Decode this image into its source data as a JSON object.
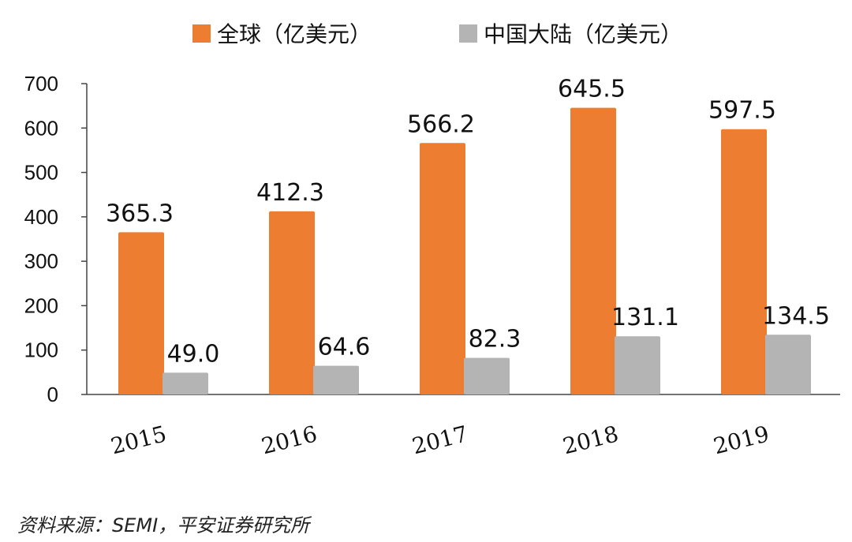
{
  "chart_data": {
    "type": "bar",
    "categories": [
      "2015",
      "2016",
      "2017",
      "2018",
      "2019"
    ],
    "series": [
      {
        "name": "全球（亿美元）",
        "color": "#ED7D31",
        "values": [
          365.3,
          412.3,
          566.2,
          645.5,
          597.5
        ],
        "labels": [
          "365.3",
          "412.3",
          "566.2",
          "645.5",
          "597.5"
        ]
      },
      {
        "name": "中国大陆（亿美元）",
        "color": "#B4B4B4",
        "values": [
          49.0,
          64.6,
          82.3,
          131.1,
          134.5
        ],
        "labels": [
          "49.0",
          "64.6",
          "82.3",
          "131.1",
          "134.5"
        ]
      }
    ],
    "yticks": [
      "0",
      "100",
      "200",
      "300",
      "400",
      "500",
      "600",
      "700"
    ],
    "ylim": [
      0,
      700
    ],
    "grid": false,
    "legend_position": "top"
  },
  "source": "资料来源：SEMI，平安证券研究所"
}
